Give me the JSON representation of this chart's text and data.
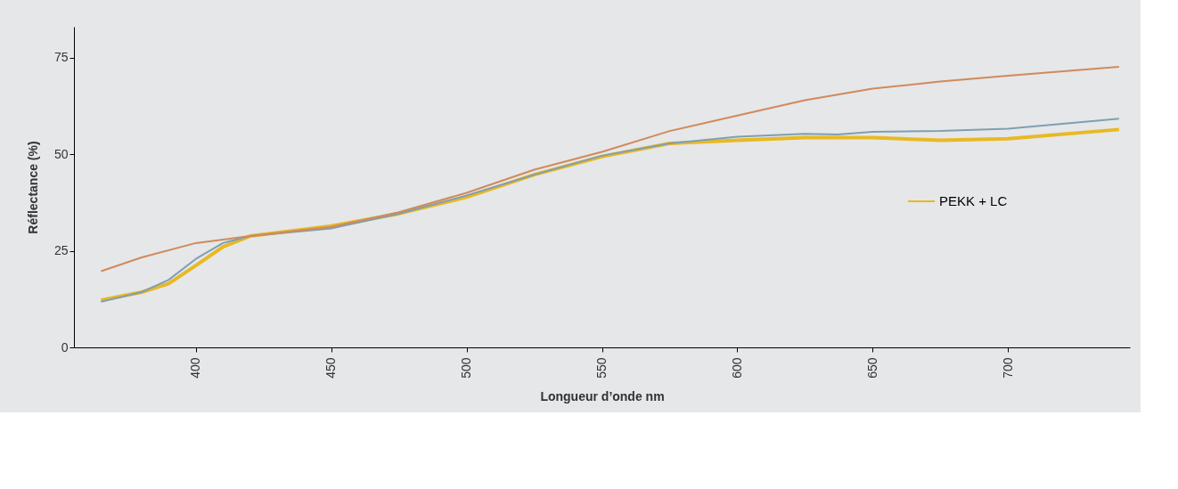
{
  "chart_data": {
    "type": "line",
    "xlabel": "Longueur d’onde nm",
    "ylabel": "Réflectance (%)",
    "xlim": [
      355,
      745
    ],
    "xticks": [
      400,
      450,
      500,
      550,
      600,
      650,
      700
    ],
    "ylim": [
      0,
      83
    ],
    "yticks": [
      0,
      25,
      50,
      75
    ],
    "grid": false,
    "legend": "right",
    "series": [
      {
        "name": "PEKK + LC",
        "color": "#e8b923",
        "x": [
          365,
          380,
          390,
          400,
          410,
          420,
          450,
          475,
          500,
          525,
          550,
          575,
          600,
          625,
          650,
          675,
          700,
          741
        ],
        "values": [
          12.2,
          14.3,
          16.5,
          21.2,
          26,
          28.8,
          31.4,
          34.6,
          38.9,
          44.7,
          49.4,
          52.8,
          53.6,
          54.3,
          54.3,
          53.6,
          54,
          56.4
        ]
      },
      {
        "color": "#7f9fb3",
        "x": [
          365,
          380,
          390,
          400,
          410,
          420,
          450,
          475,
          500,
          525,
          550,
          575,
          600,
          625,
          637,
          650,
          675,
          700,
          741
        ],
        "values": [
          11.8,
          14.3,
          17.5,
          22.9,
          27,
          28.8,
          30.8,
          34.6,
          39.3,
          44.7,
          49.6,
          52.8,
          54.5,
          55.3,
          55.1,
          55.8,
          56,
          56.6,
          59.2
        ]
      },
      {
        "color": "#d08a5c",
        "x": [
          365,
          380,
          400,
          420,
          450,
          475,
          500,
          525,
          550,
          575,
          600,
          625,
          650,
          675,
          700,
          741
        ],
        "values": [
          19.7,
          23.3,
          27,
          28.8,
          31.2,
          35,
          40,
          46,
          50.6,
          56,
          60,
          64,
          67,
          68.8,
          70.3,
          72.6
        ]
      }
    ]
  }
}
